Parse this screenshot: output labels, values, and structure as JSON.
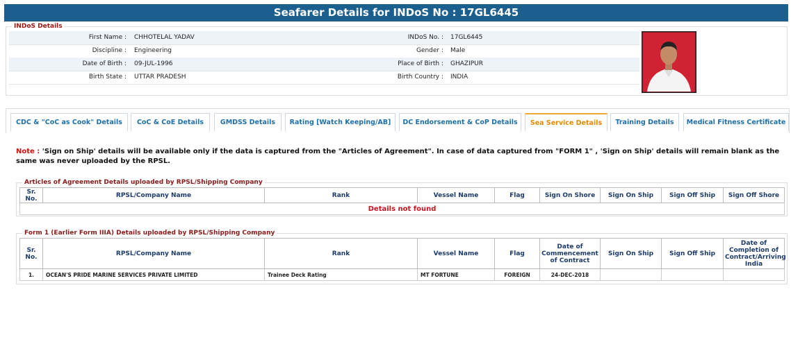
{
  "header": {
    "title": "Seafarer Details for INDoS No : 17GL6445"
  },
  "indos_details": {
    "legend": "INDoS Details",
    "fields": [
      [
        {
          "label": "First Name :",
          "value": "CHHOTELAL YADAV"
        },
        {
          "label": "INDoS No. :",
          "value": "17GL6445"
        }
      ],
      [
        {
          "label": "Discipline :",
          "value": "Engineering"
        },
        {
          "label": "Gender :",
          "value": "Male"
        }
      ],
      [
        {
          "label": "Date of Birth :",
          "value": "09-JUL-1996"
        },
        {
          "label": "Place of Birth :",
          "value": "GHAZIPUR"
        }
      ],
      [
        {
          "label": "Birth State :",
          "value": "UTTAR PRADESH"
        },
        {
          "label": "Birth Country :",
          "value": "INDIA"
        }
      ]
    ]
  },
  "tabs": [
    {
      "label": "CDC & \"CoC as Cook\" Details",
      "active": false
    },
    {
      "label": "CoC & CoE Details",
      "active": false
    },
    {
      "label": "GMDSS Details",
      "active": false
    },
    {
      "label": "Rating [Watch Keeping/AB]",
      "active": false
    },
    {
      "label": "DC Endorsement & CoP Details",
      "active": false
    },
    {
      "label": "Sea Service Details",
      "active": true
    },
    {
      "label": "Training Details",
      "active": false
    },
    {
      "label": "Medical Fitness Certificate",
      "active": false
    }
  ],
  "note": {
    "label": "Note :",
    "text": "'Sign on Ship' details will be available only if the data is captured from the \"Articles of Agreement\". In case of data captured from \"FORM 1\" , 'Sign on Ship' details will remain blank as the same was never uploaded by the RPSL."
  },
  "articles": {
    "legend": "Articles of Agreement Details uploaded by RPSL/Shipping Company",
    "columns": [
      "Sr. No.",
      "RPSL/Company Name",
      "Rank",
      "Vessel Name",
      "Flag",
      "Sign On Shore",
      "Sign On Ship",
      "Sign Off Ship",
      "Sign Off Shore"
    ],
    "empty": "Details not found"
  },
  "form1": {
    "legend": "Form 1 (Earlier Form IIIA) Details uploaded by RPSL/Shipping Company",
    "columns": [
      "Sr. No.",
      "RPSL/Company Name",
      "Rank",
      "Vessel Name",
      "Flag",
      "Date of Commencement of Contract",
      "Sign On Ship",
      "Sign Off Ship",
      "Date of Completion of Contract/Arriving India"
    ],
    "rows": [
      [
        "1.",
        "OCEAN'S PRIDE MARINE SERVICES PRIVATE LIMITED",
        "Trainee Deck Rating",
        "MT FORTUNE",
        "FOREIGN",
        "24-DEC-2018",
        null,
        null,
        null
      ]
    ]
  }
}
